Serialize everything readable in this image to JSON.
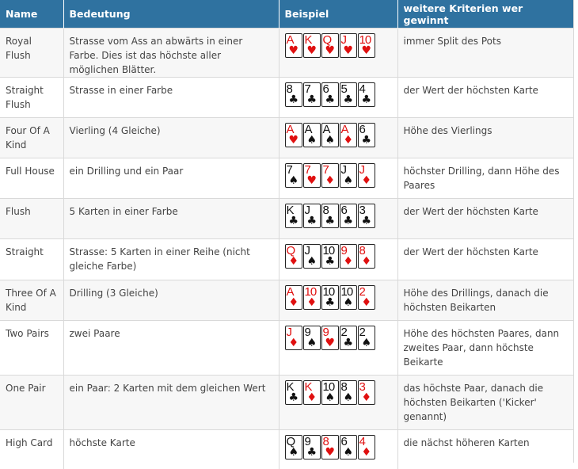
{
  "headers": {
    "name": "Name",
    "meaning": "Bedeutung",
    "example": "Beispiel",
    "criteria": "weitere Kriterien wer gewinnt"
  },
  "rows": [
    {
      "name": "Royal Flush",
      "meaning": "Strasse vom Ass an abwärts in einer Farbe. Dies ist das höchste aller möglichen Blätter.",
      "criteria": "immer Split des Pots",
      "cards": [
        {
          "rank": "A",
          "suit": "heart"
        },
        {
          "rank": "K",
          "suit": "heart"
        },
        {
          "rank": "Q",
          "suit": "heart"
        },
        {
          "rank": "J",
          "suit": "heart"
        },
        {
          "rank": "10",
          "suit": "heart"
        }
      ]
    },
    {
      "name": "Straight Flush",
      "meaning": "Strasse in einer Farbe",
      "criteria": "der Wert der höchsten Karte",
      "cards": [
        {
          "rank": "8",
          "suit": "club"
        },
        {
          "rank": "7",
          "suit": "club"
        },
        {
          "rank": "6",
          "suit": "club"
        },
        {
          "rank": "5",
          "suit": "club"
        },
        {
          "rank": "4",
          "suit": "club"
        }
      ]
    },
    {
      "name": "Four Of A Kind",
      "meaning": "Vierling (4 Gleiche)",
      "criteria": "Höhe des Vierlings",
      "cards": [
        {
          "rank": "A",
          "suit": "heart"
        },
        {
          "rank": "A",
          "suit": "spade"
        },
        {
          "rank": "A",
          "suit": "spade"
        },
        {
          "rank": "A",
          "suit": "diamond"
        },
        {
          "rank": "6",
          "suit": "club"
        }
      ]
    },
    {
      "name": "Full House",
      "meaning": "ein Drilling und ein Paar",
      "criteria": "höchster Drilling, dann Höhe des Paares",
      "cards": [
        {
          "rank": "7",
          "suit": "spade"
        },
        {
          "rank": "7",
          "suit": "heart"
        },
        {
          "rank": "7",
          "suit": "diamond"
        },
        {
          "rank": "J",
          "suit": "spade"
        },
        {
          "rank": "J",
          "suit": "diamond"
        }
      ]
    },
    {
      "name": "Flush",
      "meaning": "5 Karten in einer Farbe",
      "criteria": "der Wert der höchsten Karte",
      "cards": [
        {
          "rank": "K",
          "suit": "club"
        },
        {
          "rank": "J",
          "suit": "club"
        },
        {
          "rank": "8",
          "suit": "club"
        },
        {
          "rank": "6",
          "suit": "club"
        },
        {
          "rank": "3",
          "suit": "club"
        }
      ]
    },
    {
      "name": "Straight",
      "meaning": "Strasse: 5 Karten in einer Reihe (nicht gleiche Farbe)",
      "criteria": "der Wert der höchsten Karte",
      "cards": [
        {
          "rank": "Q",
          "suit": "diamond"
        },
        {
          "rank": "J",
          "suit": "spade"
        },
        {
          "rank": "10",
          "suit": "club"
        },
        {
          "rank": "9",
          "suit": "diamond"
        },
        {
          "rank": "8",
          "suit": "diamond"
        }
      ]
    },
    {
      "name": "Three Of A Kind",
      "meaning": "Drilling (3 Gleiche)",
      "criteria": "Höhe des Drillings, danach die höchsten Beikarten",
      "cards": [
        {
          "rank": "A",
          "suit": "diamond"
        },
        {
          "rank": "10",
          "suit": "diamond"
        },
        {
          "rank": "10",
          "suit": "club"
        },
        {
          "rank": "10",
          "suit": "spade"
        },
        {
          "rank": "2",
          "suit": "diamond"
        }
      ]
    },
    {
      "name": "Two Pairs",
      "meaning": "zwei Paare",
      "criteria": "Höhe des höchsten Paares, dann zweites Paar, dann höchste Beikarte",
      "cards": [
        {
          "rank": "J",
          "suit": "diamond"
        },
        {
          "rank": "9",
          "suit": "spade"
        },
        {
          "rank": "9",
          "suit": "heart"
        },
        {
          "rank": "2",
          "suit": "club"
        },
        {
          "rank": "2",
          "suit": "spade"
        }
      ]
    },
    {
      "name": "One Pair",
      "meaning": "ein Paar: 2 Karten mit dem gleichen Wert",
      "criteria": "das höchste Paar, danach die höchsten Beikarten ('Kicker' genannt)",
      "cards": [
        {
          "rank": "K",
          "suit": "club"
        },
        {
          "rank": "K",
          "suit": "diamond"
        },
        {
          "rank": "10",
          "suit": "spade"
        },
        {
          "rank": "8",
          "suit": "spade"
        },
        {
          "rank": "3",
          "suit": "diamond"
        }
      ]
    },
    {
      "name": "High Card",
      "meaning": "höchste Karte",
      "criteria": "die nächst höheren Karten",
      "cards": [
        {
          "rank": "Q",
          "suit": "spade"
        },
        {
          "rank": "9",
          "suit": "club"
        },
        {
          "rank": "8",
          "suit": "heart"
        },
        {
          "rank": "6",
          "suit": "spade"
        },
        {
          "rank": "4",
          "suit": "diamond"
        }
      ]
    }
  ],
  "suit_symbols": {
    "heart": "♥",
    "diamond": "♦",
    "spade": "♠",
    "club": "♣"
  },
  "colors": {
    "header_bg": "#2f72a0",
    "red_suit": "#e01010",
    "black_suit": "#111111"
  }
}
